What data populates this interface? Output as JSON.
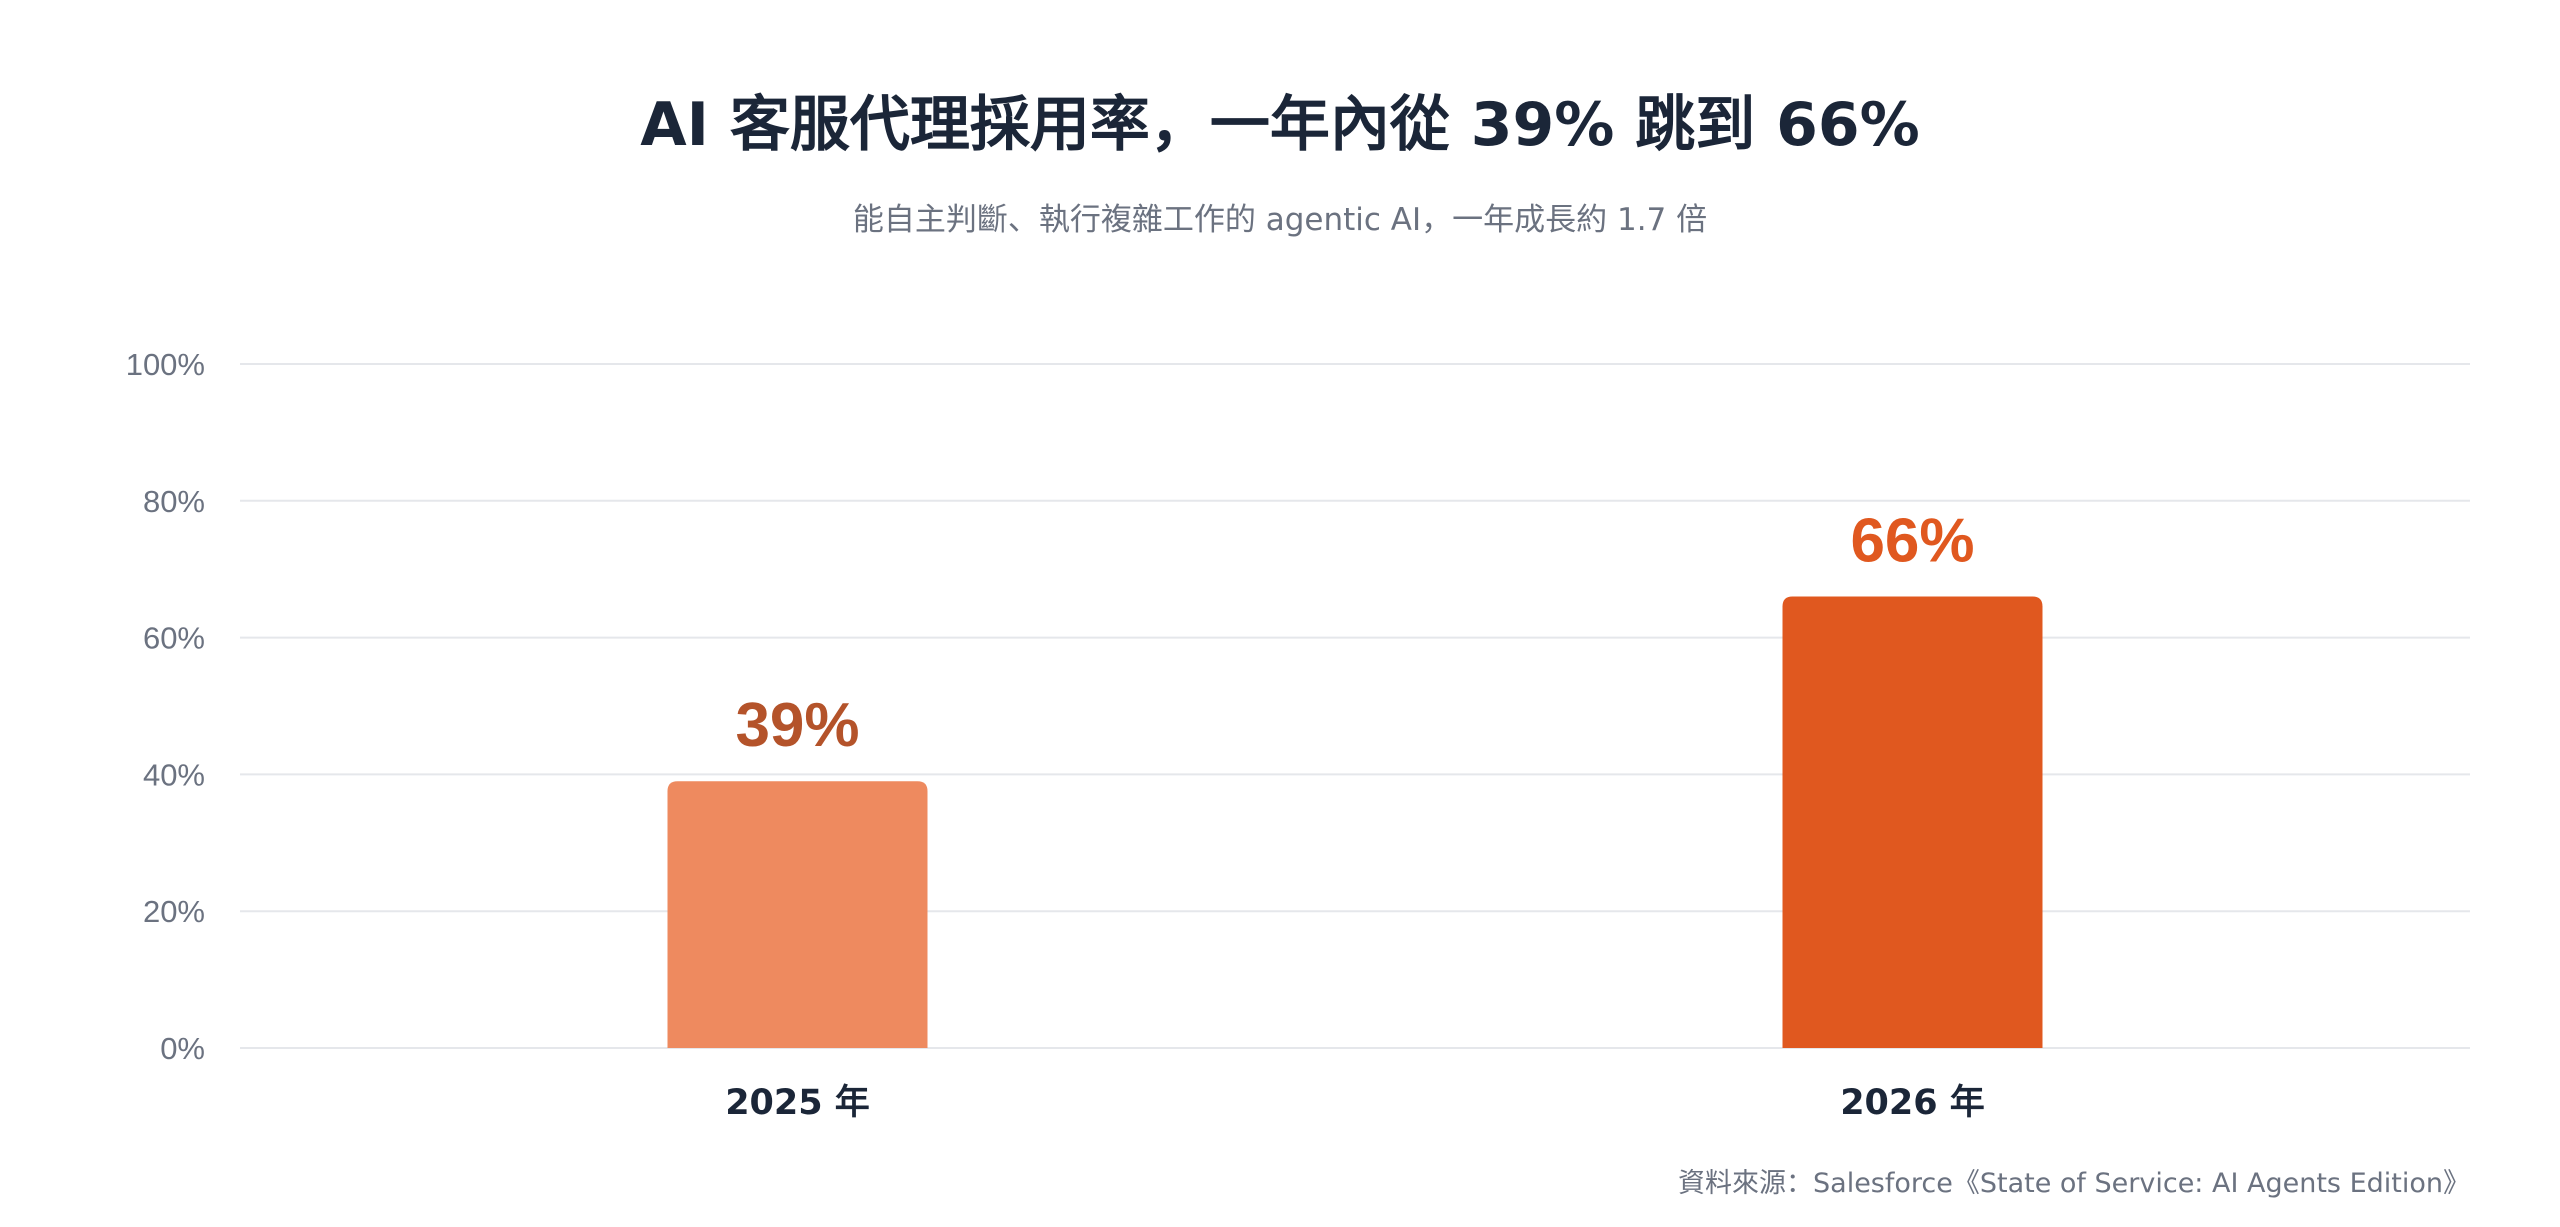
{
  "chart_data": {
    "type": "bar",
    "title": "AI 客服代理採用率，一年內從 39% 跳到 66%",
    "subtitle": "能自主判斷、執行複雜工作的 agentic AI，一年成長約 1.7 倍",
    "categories": [
      "2025 年",
      "2026 年"
    ],
    "values": [
      39,
      66
    ],
    "value_labels": [
      "39%",
      "66%"
    ],
    "bar_colors": [
      "#ee8a5f",
      "#e0581f"
    ],
    "label_colors": [
      "#b4532a",
      "#e0581f"
    ],
    "ylim": [
      0,
      100
    ],
    "yticks": [
      0,
      20,
      40,
      60,
      80,
      100
    ],
    "ytick_labels": [
      "0%",
      "20%",
      "40%",
      "60%",
      "80%",
      "100%"
    ],
    "grid": true,
    "legend": "none",
    "source": "資料來源：Salesforce《State of Service: AI Agents Edition》"
  }
}
